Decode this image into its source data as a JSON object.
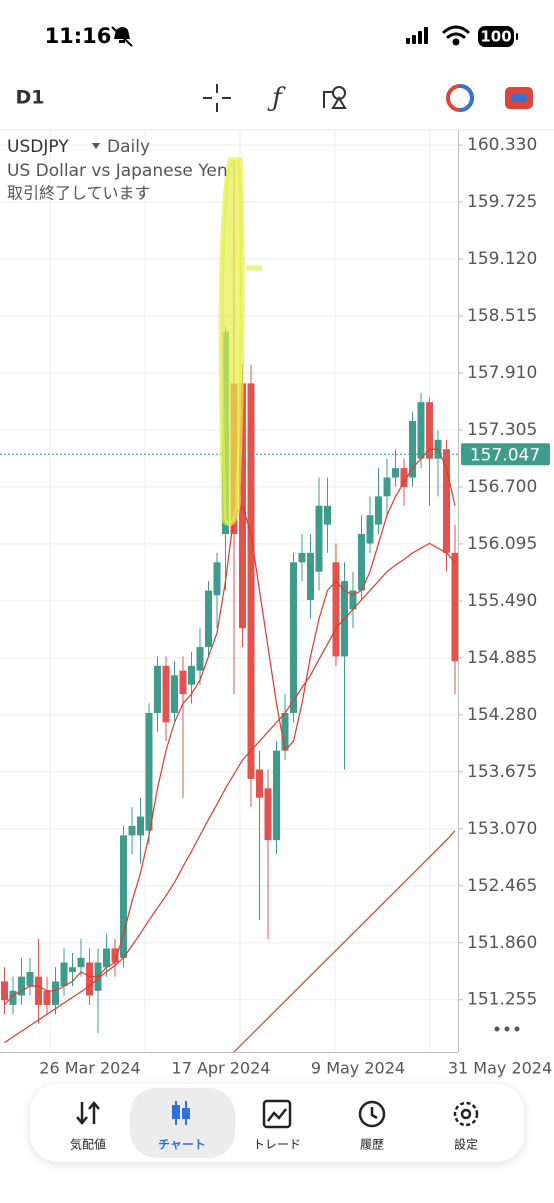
{
  "status_bar": {
    "time": "11:16",
    "battery": "100"
  },
  "toolbar": {
    "timeframe": "D1"
  },
  "chart_data": {
    "type": "candlestick",
    "symbol": "USDJPY",
    "timeframe": "Daily",
    "description": "US Dollar vs Japanese Yen",
    "status": "取引終了しています",
    "up_color": "#3f9c8c",
    "down_color": "#e4524e",
    "open": [
      151.45,
      151.2,
      151.3,
      151.4,
      151.5,
      151.35,
      151.2,
      151.4,
      151.55,
      151.6,
      151.65,
      151.35,
      151.6,
      151.8,
      151.7,
      153.0,
      153.0,
      153.05,
      154.3,
      154.8,
      154.3,
      154.75,
      154.6,
      154.75,
      155.0,
      155.55,
      156.2,
      157.8,
      157.8,
      157.8,
      153.7,
      153.5,
      152.95,
      153.9,
      154.3,
      155.9,
      155.5,
      155.8,
      156.3,
      155.9,
      154.9,
      155.4,
      155.6,
      156.1,
      156.3,
      156.6,
      156.8,
      156.9,
      156.8,
      157.0,
      157.6,
      157.0,
      157.1,
      156.0
    ],
    "high": [
      151.6,
      151.5,
      151.7,
      151.7,
      151.9,
      151.5,
      151.6,
      151.8,
      151.75,
      151.9,
      151.8,
      151.8,
      151.95,
      151.9,
      153.1,
      153.3,
      153.4,
      154.4,
      154.9,
      154.9,
      154.85,
      154.9,
      154.95,
      155.2,
      155.7,
      156.0,
      158.4,
      160.17,
      158.0,
      158.0,
      153.9,
      153.7,
      154.0,
      154.5,
      156.0,
      156.2,
      156.2,
      156.8,
      156.8,
      156.1,
      155.9,
      155.8,
      156.4,
      156.6,
      156.9,
      157.0,
      157.1,
      157.0,
      157.5,
      157.7,
      157.65,
      157.3,
      157.2,
      156.3
    ],
    "low": [
      151.1,
      151.1,
      151.2,
      151.3,
      151.0,
      151.1,
      151.1,
      151.3,
      151.4,
      151.5,
      151.2,
      150.9,
      151.5,
      151.5,
      151.6,
      152.8,
      152.7,
      152.9,
      154.1,
      154.0,
      154.2,
      153.4,
      154.4,
      154.6,
      154.9,
      155.2,
      155.6,
      154.5,
      155.0,
      153.3,
      152.1,
      151.9,
      152.8,
      153.8,
      154.2,
      155.7,
      155.3,
      155.6,
      156.0,
      154.8,
      153.7,
      155.2,
      155.5,
      156.0,
      156.2,
      156.4,
      156.7,
      156.5,
      156.7,
      156.9,
      156.5,
      156.6,
      155.8,
      154.5
    ],
    "close": [
      151.25,
      151.35,
      151.5,
      151.55,
      151.2,
      151.2,
      151.45,
      151.65,
      151.6,
      151.7,
      151.3,
      151.65,
      151.8,
      151.65,
      153.0,
      153.1,
      153.2,
      154.3,
      154.8,
      154.2,
      154.7,
      154.5,
      154.8,
      155.0,
      155.6,
      155.9,
      158.35,
      156.2,
      155.2,
      153.6,
      153.4,
      152.95,
      153.9,
      154.3,
      155.9,
      156.0,
      156.0,
      156.5,
      156.5,
      154.9,
      155.7,
      155.6,
      156.2,
      156.4,
      156.6,
      156.8,
      156.9,
      156.7,
      157.4,
      157.6,
      157.0,
      157.2,
      156.0,
      154.85
    ],
    "series": [
      {
        "color": "#e0392b",
        "values": [
          151.2,
          151.3,
          151.35,
          151.4,
          151.4,
          151.35,
          151.35,
          151.4,
          151.45,
          151.55,
          151.5,
          151.5,
          151.6,
          151.65,
          151.95,
          152.3,
          152.6,
          153.0,
          153.5,
          153.9,
          154.2,
          154.4,
          154.5,
          154.65,
          154.9,
          155.15,
          155.7,
          156.4,
          156.5,
          156.2,
          155.6,
          155.0,
          154.4,
          153.9,
          154.0,
          154.4,
          154.9,
          155.3,
          155.6,
          155.7,
          155.6,
          155.55,
          155.6,
          155.8,
          156.1,
          156.4,
          156.6,
          156.75,
          156.9,
          157.0,
          157.1,
          157.1,
          156.9,
          156.5
        ]
      },
      {
        "color": "#e0392b",
        "values": [
          150.8,
          150.86,
          150.92,
          150.98,
          151.04,
          151.1,
          151.16,
          151.22,
          151.28,
          151.34,
          151.4,
          151.48,
          151.55,
          151.62,
          151.7,
          151.83,
          151.96,
          152.1,
          152.23,
          152.36,
          152.5,
          152.67,
          152.83,
          153.0,
          153.17,
          153.33,
          153.5,
          153.65,
          153.8,
          153.9,
          154.0,
          154.1,
          154.2,
          154.3,
          154.43,
          154.57,
          154.7,
          154.87,
          155.03,
          155.2,
          155.3,
          155.4,
          155.5,
          155.6,
          155.7,
          155.8,
          155.87,
          155.93,
          156.0,
          156.05,
          156.1,
          156.05,
          156.0,
          155.9
        ]
      },
      {
        "color": "#e0392b",
        "values": [
          null,
          null,
          null,
          null,
          null,
          null,
          null,
          null,
          null,
          null,
          null,
          null,
          null,
          null,
          null,
          null,
          null,
          null,
          null,
          null,
          null,
          null,
          null,
          null,
          null,
          null,
          null,
          150.7,
          150.79,
          150.88,
          150.97,
          151.06,
          151.15,
          151.24,
          151.33,
          151.42,
          151.51,
          151.6,
          151.69,
          151.78,
          151.87,
          151.96,
          152.05,
          152.14,
          152.23,
          152.32,
          152.41,
          152.5,
          152.59,
          152.68,
          152.77,
          152.86,
          152.95,
          153.05
        ]
      }
    ],
    "ylim": [
      150.7,
      160.49
    ],
    "yticks": [
      {
        "value": 160.33,
        "label": "160.330"
      },
      159.725,
      {
        "value": 159.12,
        "label": "159.120"
      },
      158.515,
      {
        "value": 157.91,
        "label": "157.910"
      },
      157.305,
      {
        "value": 156.7,
        "label": "156.700"
      },
      156.095,
      {
        "value": 155.49,
        "label": "155.490"
      },
      154.885,
      {
        "value": 154.28,
        "label": "154.280"
      },
      153.675,
      {
        "value": 153.07,
        "label": "153.070"
      },
      152.465,
      {
        "value": 151.86,
        "label": "151.860"
      },
      151.255
    ],
    "last_price": 157.047,
    "x_labels": [
      "26 Mar 2024",
      "17 Apr 2024",
      "9 May 2024",
      "31 May 2024"
    ],
    "grid": true
  },
  "tab_bar": {
    "items": [
      "気配値",
      "チャート",
      "トレード",
      "履歴",
      "設定"
    ],
    "active": "チャート"
  }
}
